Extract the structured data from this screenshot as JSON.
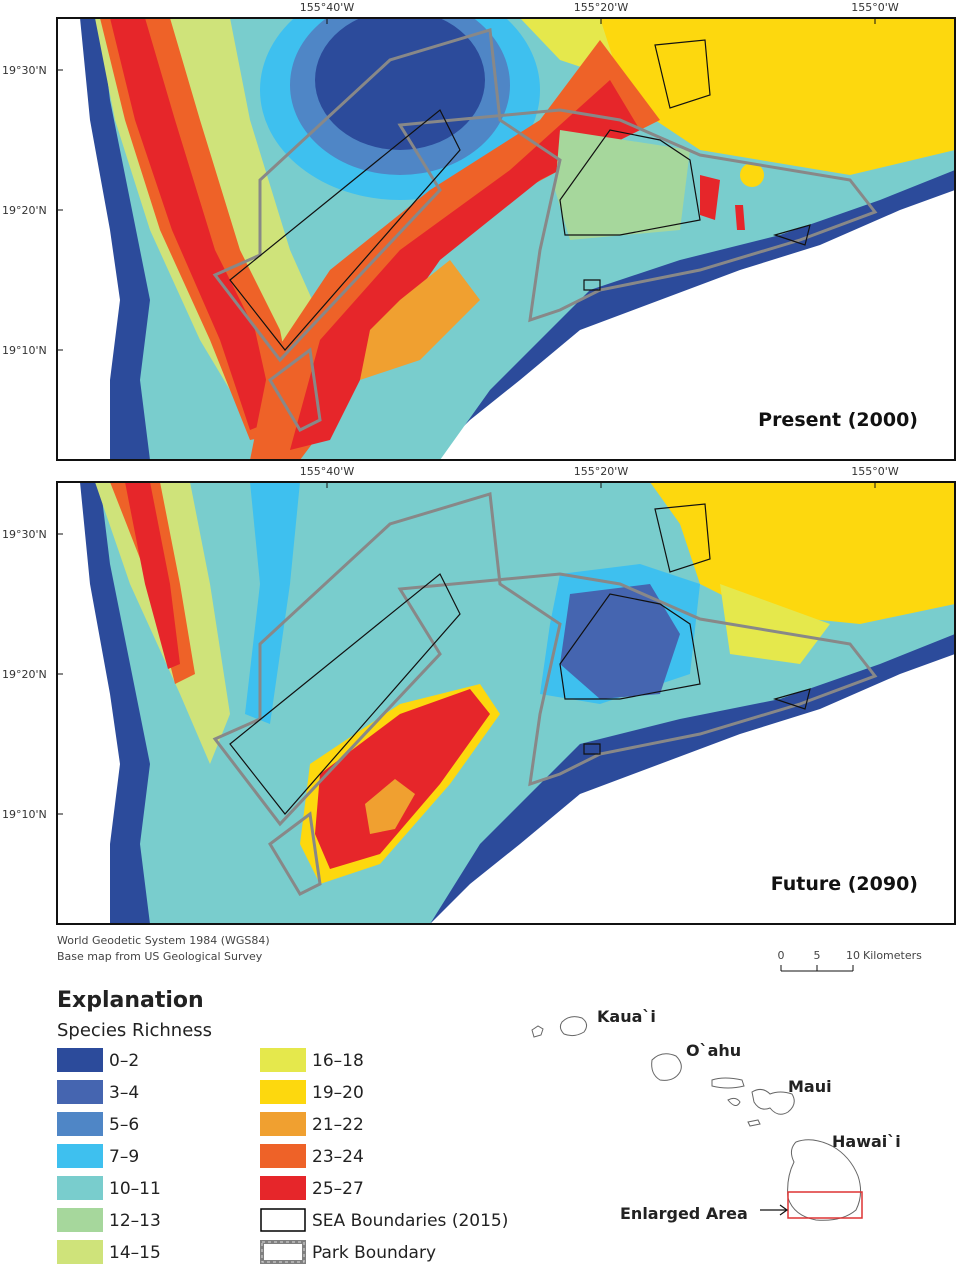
{
  "maps": [
    {
      "label": "Present (2000)",
      "x_labels": [
        "155°40'W",
        "155°20'W",
        "155°0'W"
      ],
      "y_labels": [
        "19°30'N",
        "19°20'N",
        "19°10'N"
      ]
    },
    {
      "label": "Future (2090)",
      "x_labels": [
        "155°40'W",
        "155°20'W",
        "155°0'W"
      ],
      "y_labels": [
        "19°30'N",
        "19°20'N",
        "19°10'N"
      ]
    }
  ],
  "credits": [
    "World Geodetic System 1984 (WGS84)",
    "Base map from US Geological Survey"
  ],
  "scale_bar": {
    "ticks": [
      0,
      5,
      10
    ],
    "unit": "Kilometers"
  },
  "legend": {
    "title": "Explanation",
    "subtitle": "Species Richness",
    "items": [
      {
        "label": "0–2",
        "color": "#2c4b9b"
      },
      {
        "label": "3–4",
        "color": "#4565b0"
      },
      {
        "label": "5–6",
        "color": "#4f86c6"
      },
      {
        "label": "7–9",
        "color": "#3ec0ef"
      },
      {
        "label": "10–11",
        "color": "#79cdcd"
      },
      {
        "label": "12–13",
        "color": "#a6d79c"
      },
      {
        "label": "14–15",
        "color": "#cfe37a"
      },
      {
        "label": "16–18",
        "color": "#e5e84c"
      },
      {
        "label": "19–20",
        "color": "#fdd80e"
      },
      {
        "label": "21–22",
        "color": "#f0a030"
      },
      {
        "label": "23–24",
        "color": "#ee6228"
      },
      {
        "label": "25–27",
        "color": "#e6262a"
      },
      {
        "label": "SEA Boundaries (2015)",
        "outline": "#000000"
      },
      {
        "label": "Park Boundary",
        "outline": "#808080"
      }
    ]
  },
  "inset": {
    "islands": [
      "Kaua`i",
      "O`ahu",
      "Maui",
      "Hawai`i"
    ],
    "enlarged_label": "Enlarged Area"
  }
}
